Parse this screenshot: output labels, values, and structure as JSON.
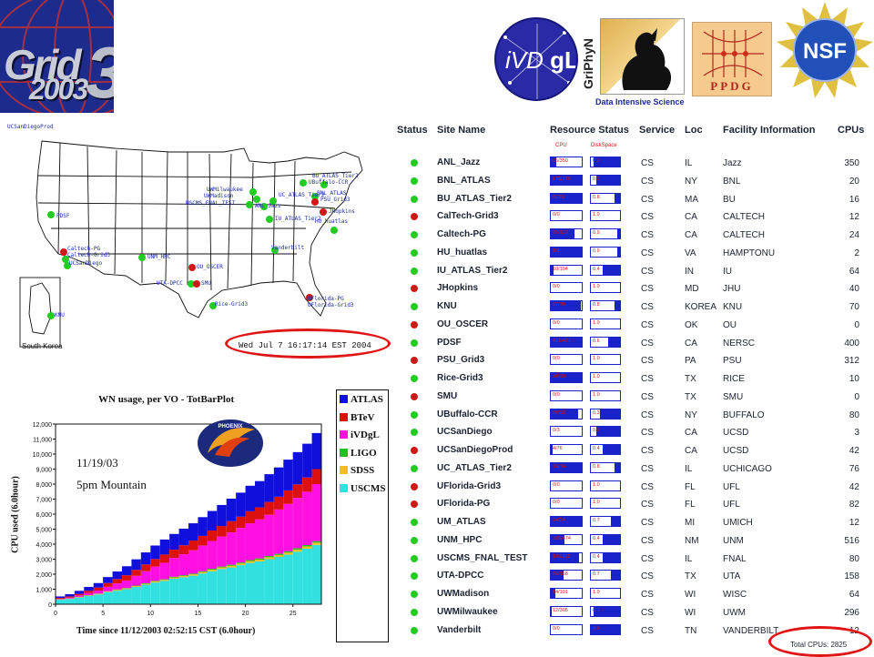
{
  "logos": {
    "grid3": {
      "word": "Grid",
      "year": "2003",
      "digit": "3"
    },
    "ivdgl": {
      "prefix": "iVD",
      "suffix": "gL"
    },
    "griphyn": {
      "name": "GriPhyN",
      "tagline": "Data Intensive Science"
    },
    "ppdg": {
      "name": "PPDG"
    },
    "nsf": {
      "name": "NSF"
    }
  },
  "map": {
    "corner_label": "UCSanDiegoProd",
    "inset_label": "South Korea",
    "timestamp": "Wed Jul  7 16:17:14 EST 2004",
    "highlight_color": "#e01515",
    "site_labels": [
      {
        "text": "BU_ATLAS_Tier2"
      },
      {
        "text": "UBuffalo-CCR"
      },
      {
        "text": "BNL_ATLAS"
      },
      {
        "text": "JHopkins"
      },
      {
        "text": "UWMilwaukee"
      },
      {
        "text": "UWMadison"
      },
      {
        "text": "USCMS_FNAL_TEST"
      },
      {
        "text": "UC_ATLAS_Tier2"
      },
      {
        "text": "ANL_Jazz"
      },
      {
        "text": "PSU_Grid3"
      },
      {
        "text": "IU_ATLAS_Tier2"
      },
      {
        "text": "HU_huatlas"
      },
      {
        "text": "PDSF"
      },
      {
        "text": "Vanderbilt"
      },
      {
        "text": "Caltech-PG"
      },
      {
        "text": "Caltech-Grid3"
      },
      {
        "text": "UCSanDiego"
      },
      {
        "text": "UNM_HPC"
      },
      {
        "text": "OU_OSCER"
      },
      {
        "text": "UTA-DPCC"
      },
      {
        "text": "SMU"
      },
      {
        "text": "Rice-Grid3"
      },
      {
        "text": "UFlorida-PG"
      },
      {
        "text": "UFlorida-Grid3"
      },
      {
        "text": "KNU"
      }
    ]
  },
  "table": {
    "headers": {
      "status": "Status",
      "site": "Site Name",
      "resource": "Resource Status",
      "service": "Service",
      "loc": "Loc",
      "facility": "Facility Information",
      "cpus": "CPUs"
    },
    "subheaders": {
      "cpu": "CPU",
      "disk": "DiskSpace"
    },
    "status_colors": {
      "up": "#22cc22",
      "down": "#d01818"
    },
    "rows": [
      {
        "status": "up",
        "site": "ANL_Jazz",
        "cpu": "65/350",
        "cpu_frac": 0.19,
        "disk": "0.1",
        "disk_frac": 0.9,
        "service": "CS",
        "loc": "IL",
        "facility": "Jazz",
        "cpus": "350"
      },
      {
        "status": "up",
        "site": "BNL_ATLAS",
        "cpu": "176/176",
        "cpu_frac": 1.0,
        "disk": "0.2",
        "disk_frac": 0.8,
        "service": "CS",
        "loc": "NY",
        "facility": "BNL",
        "cpus": "20"
      },
      {
        "status": "up",
        "site": "BU_ATLAS_Tier2",
        "cpu": "82/82",
        "cpu_frac": 1.0,
        "disk": "0.8",
        "disk_frac": 0.2,
        "service": "CS",
        "loc": "MA",
        "facility": "BU",
        "cpus": "16"
      },
      {
        "status": "down",
        "site": "CalTech-Grid3",
        "cpu": "0/0",
        "cpu_frac": 0.0,
        "disk": "1.0",
        "disk_frac": 0.0,
        "service": "CS",
        "loc": "CA",
        "facility": "CALTECH",
        "cpus": "12"
      },
      {
        "status": "up",
        "site": "Caltech-PG",
        "cpu": "95/123",
        "cpu_frac": 0.77,
        "disk": "0.9",
        "disk_frac": 0.1,
        "service": "CS",
        "loc": "CA",
        "facility": "CALTECH",
        "cpus": "24"
      },
      {
        "status": "up",
        "site": "HU_huatlas",
        "cpu": "1/1",
        "cpu_frac": 1.0,
        "disk": "0.9",
        "disk_frac": 0.1,
        "service": "CS",
        "loc": "VA",
        "facility": "HAMPTONU",
        "cpus": "2"
      },
      {
        "status": "up",
        "site": "IU_ATLAS_Tier2",
        "cpu": "10/104",
        "cpu_frac": 0.1,
        "disk": "0.4",
        "disk_frac": 0.6,
        "service": "CS",
        "loc": "IN",
        "facility": "IU",
        "cpus": "64"
      },
      {
        "status": "down",
        "site": "JHopkins",
        "cpu": "0/0",
        "cpu_frac": 0.0,
        "disk": "1.0",
        "disk_frac": 0.0,
        "service": "CS",
        "loc": "MD",
        "facility": "JHU",
        "cpus": "40"
      },
      {
        "status": "up",
        "site": "KNU",
        "cpu": "67/70",
        "cpu_frac": 0.96,
        "disk": "0.8",
        "disk_frac": 0.2,
        "service": "CS",
        "loc": "KOREA",
        "facility": "KNU",
        "cpus": "70"
      },
      {
        "status": "down",
        "site": "OU_OSCER",
        "cpu": "0/0",
        "cpu_frac": 0.0,
        "disk": "1.0",
        "disk_frac": 0.0,
        "service": "CS",
        "loc": "OK",
        "facility": "OU",
        "cpus": "0"
      },
      {
        "status": "up",
        "site": "PDSF",
        "cpu": "417/421",
        "cpu_frac": 0.99,
        "disk": "0.6",
        "disk_frac": 0.4,
        "service": "CS",
        "loc": "CA",
        "facility": "NERSC",
        "cpus": "400"
      },
      {
        "status": "down",
        "site": "PSU_Grid3",
        "cpu": "0/0",
        "cpu_frac": 0.0,
        "disk": "1.0",
        "disk_frac": 0.0,
        "service": "CS",
        "loc": "PA",
        "facility": "PSU",
        "cpus": "312"
      },
      {
        "status": "up",
        "site": "Rice-Grid3",
        "cpu": "20/20",
        "cpu_frac": 1.0,
        "disk": "1.0",
        "disk_frac": 0.0,
        "service": "CS",
        "loc": "TX",
        "facility": "RICE",
        "cpus": "10"
      },
      {
        "status": "down",
        "site": "SMU",
        "cpu": "0/0",
        "cpu_frac": 0.0,
        "disk": "1.0",
        "disk_frac": 0.0,
        "service": "CS",
        "loc": "TX",
        "facility": "SMU",
        "cpus": "0"
      },
      {
        "status": "up",
        "site": "UBuffalo-CCR",
        "cpu": "60/68",
        "cpu_frac": 0.88,
        "disk": "0.3",
        "disk_frac": 0.7,
        "service": "CS",
        "loc": "NY",
        "facility": "BUFFALO",
        "cpus": "80"
      },
      {
        "status": "up",
        "site": "UCSanDiego",
        "cpu": "0/3",
        "cpu_frac": 0.0,
        "disk": "0.2",
        "disk_frac": 0.8,
        "service": "CS",
        "loc": "CA",
        "facility": "UCSD",
        "cpus": "3"
      },
      {
        "status": "down",
        "site": "UCSanDiegoProd",
        "cpu": "4/76",
        "cpu_frac": 0.05,
        "disk": "0.4",
        "disk_frac": 0.6,
        "service": "CS",
        "loc": "CA",
        "facility": "UCSD",
        "cpus": "42"
      },
      {
        "status": "up",
        "site": "UC_ATLAS_Tier2",
        "cpu": "76/76",
        "cpu_frac": 1.0,
        "disk": "0.8",
        "disk_frac": 0.2,
        "service": "CS",
        "loc": "IL",
        "facility": "UCHICAGO",
        "cpus": "76"
      },
      {
        "status": "down",
        "site": "UFlorida-Grid3",
        "cpu": "0/0",
        "cpu_frac": 0.0,
        "disk": "1.0",
        "disk_frac": 0.0,
        "service": "CS",
        "loc": "FL",
        "facility": "UFL",
        "cpus": "42"
      },
      {
        "status": "down",
        "site": "UFlorida-PG",
        "cpu": "0/0",
        "cpu_frac": 0.0,
        "disk": "1.0",
        "disk_frac": 0.0,
        "service": "CS",
        "loc": "FL",
        "facility": "UFL",
        "cpus": "82"
      },
      {
        "status": "up",
        "site": "UM_ATLAS",
        "cpu": "24/24",
        "cpu_frac": 1.0,
        "disk": "0.7",
        "disk_frac": 0.3,
        "service": "CS",
        "loc": "MI",
        "facility": "UMICH",
        "cpus": "12"
      },
      {
        "status": "up",
        "site": "UNM_HPC",
        "cpu": "208/474",
        "cpu_frac": 0.44,
        "disk": "0.4",
        "disk_frac": 0.6,
        "service": "CS",
        "loc": "NM",
        "facility": "UNM",
        "cpus": "516"
      },
      {
        "status": "up",
        "site": "USCMS_FNAL_TEST",
        "cpu": "102/112",
        "cpu_frac": 0.91,
        "disk": "0.4",
        "disk_frac": 0.6,
        "service": "CS",
        "loc": "IL",
        "facility": "FNAL",
        "cpus": "80"
      },
      {
        "status": "up",
        "site": "UTA-DPCC",
        "cpu": "66/158",
        "cpu_frac": 0.42,
        "disk": "0.7",
        "disk_frac": 0.3,
        "service": "CS",
        "loc": "TX",
        "facility": "UTA",
        "cpus": "158"
      },
      {
        "status": "up",
        "site": "UWMadison",
        "cpu": "14/101",
        "cpu_frac": 0.14,
        "disk": "1.0",
        "disk_frac": 0.0,
        "service": "CS",
        "loc": "WI",
        "facility": "WISC",
        "cpus": "64"
      },
      {
        "status": "up",
        "site": "UWMilwaukee",
        "cpu": "12/305",
        "cpu_frac": 0.04,
        "disk": "0.1",
        "disk_frac": 0.9,
        "service": "CS",
        "loc": "WI",
        "facility": "UWM",
        "cpus": "296"
      },
      {
        "status": "up",
        "site": "Vanderbilt",
        "cpu": "0/0",
        "cpu_frac": 0.0,
        "disk": "0.0",
        "disk_frac": 1.0,
        "service": "CS",
        "loc": "TN",
        "facility": "VANDERBILT",
        "cpus": "12"
      }
    ],
    "total": "Total CPUs: 2825"
  },
  "chart_data": {
    "type": "bar",
    "title": "WN usage, per VO - TotBarPlot",
    "xlabel": "Time since 11/12/2003 02:52:15 CST (6.0hour)",
    "ylabel": "CPU used (6.0hour)",
    "xlim": [
      0,
      28
    ],
    "ylim": [
      0,
      12000
    ],
    "xticks": [
      0,
      5,
      10,
      15,
      20,
      25
    ],
    "yticks": [
      0,
      1000,
      2000,
      3000,
      4000,
      5000,
      6000,
      7000,
      8000,
      9000,
      10000,
      11000,
      12000
    ],
    "ytick_labels": [
      "0",
      "1,000",
      "2,000",
      "3,000",
      "4,000",
      "5,000",
      "6,000",
      "7,000",
      "8,000",
      "9,000",
      "10,000",
      "11,000",
      "12,000"
    ],
    "grid": false,
    "legend_position": "right",
    "annotations": [
      "11/19/03",
      "5pm Mountain"
    ],
    "badge_text": "PHOENIX",
    "x": [
      0.5,
      1.5,
      2.5,
      3.5,
      4.5,
      5.5,
      6.5,
      7.5,
      8.5,
      9.5,
      10.5,
      11.5,
      12.5,
      13.5,
      14.5,
      15.5,
      16.5,
      17.5,
      18.5,
      19.5,
      20.5,
      21.5,
      22.5,
      23.5,
      24.5,
      25.5,
      26.5,
      27.5
    ],
    "series": [
      {
        "name": "USCMS",
        "color": "#33e0e0",
        "values": [
          300,
          350,
          450,
          550,
          650,
          800,
          900,
          1000,
          1150,
          1300,
          1450,
          1550,
          1700,
          1800,
          1900,
          2050,
          2200,
          2350,
          2450,
          2600,
          2750,
          2850,
          3000,
          3150,
          3300,
          3500,
          3700,
          3950
        ]
      },
      {
        "name": "SDSS",
        "color": "#f0c020",
        "values": [
          20,
          20,
          30,
          30,
          40,
          40,
          50,
          50,
          60,
          60,
          70,
          70,
          80,
          80,
          90,
          90,
          100,
          100,
          110,
          110,
          120,
          120,
          130,
          130,
          140,
          140,
          150,
          150
        ]
      },
      {
        "name": "LIGO",
        "color": "#20c020",
        "values": [
          10,
          10,
          10,
          20,
          20,
          20,
          30,
          30,
          30,
          40,
          40,
          40,
          50,
          50,
          50,
          60,
          60,
          60,
          70,
          70,
          70,
          80,
          80,
          80,
          90,
          90,
          90,
          100
        ]
      },
      {
        "name": "iVDgL",
        "color": "#ff10e0",
        "values": [
          30,
          60,
          100,
          150,
          200,
          300,
          400,
          500,
          650,
          800,
          950,
          1100,
          1250,
          1400,
          1550,
          1700,
          1850,
          2000,
          2150,
          2300,
          2450,
          2600,
          2750,
          2950,
          3150,
          3350,
          3550,
          3800
        ]
      },
      {
        "name": "BTeV",
        "color": "#dd1010",
        "values": [
          60,
          80,
          100,
          150,
          200,
          250,
          300,
          350,
          400,
          450,
          500,
          550,
          550,
          600,
          650,
          650,
          700,
          700,
          750,
          750,
          800,
          800,
          850,
          850,
          900,
          900,
          950,
          1000
        ]
      },
      {
        "name": "ATLAS",
        "color": "#1010dd",
        "values": [
          100,
          150,
          200,
          250,
          300,
          400,
          500,
          600,
          700,
          800,
          900,
          1000,
          1050,
          1100,
          1150,
          1250,
          1300,
          1400,
          1500,
          1600,
          1700,
          1750,
          1850,
          1950,
          2050,
          2150,
          2250,
          2400
        ]
      }
    ]
  }
}
